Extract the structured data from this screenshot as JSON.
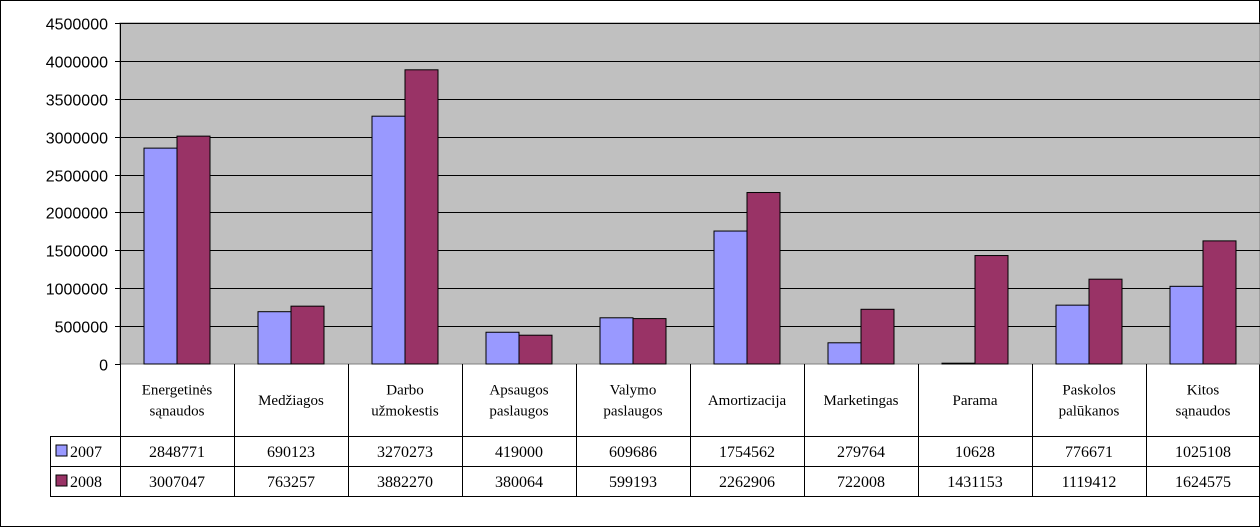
{
  "chart_data": {
    "type": "bar",
    "categories": [
      [
        "Energetinės",
        "sąnaudos"
      ],
      [
        "Medžiagos"
      ],
      [
        "Darbo",
        "užmokestis"
      ],
      [
        "Apsaugos",
        "paslaugos"
      ],
      [
        "Valymo",
        "paslaugos"
      ],
      [
        "Amortizacija"
      ],
      [
        "Marketingas"
      ],
      [
        "Parama"
      ],
      [
        "Paskolos",
        "palūkanos"
      ],
      [
        "Kitos",
        "sąnaudos"
      ]
    ],
    "series": [
      {
        "name": "2007",
        "color": "#9999ff",
        "values": [
          2848771,
          690123,
          3270273,
          419000,
          609686,
          1754562,
          279764,
          10628,
          776671,
          1025108
        ],
        "labels": [
          "2848771",
          "690123",
          "3270273",
          "419000",
          "609686",
          "1754562",
          "279764",
          "10628",
          "776671",
          "1025108"
        ]
      },
      {
        "name": "2008",
        "color": "#993366",
        "values": [
          3007047,
          763257,
          3882270,
          380064,
          599193,
          2262906,
          722008,
          1431153,
          1119412,
          1624575
        ],
        "labels": [
          "3007047",
          "763257",
          "3882270",
          "380064",
          "599193",
          "2262906",
          "722008",
          "1431153",
          "1119412",
          "1624575"
        ]
      }
    ],
    "ylim": [
      0,
      4500000
    ],
    "yticks": [
      "0",
      "500000",
      "1000000",
      "1500000",
      "2000000",
      "2500000",
      "3000000",
      "3500000",
      "4000000",
      "4500000"
    ],
    "ytick_values": [
      0,
      500000,
      1000000,
      1500000,
      2000000,
      2500000,
      3000000,
      3500000,
      4000000,
      4500000
    ],
    "plot_background": "#c0c0c0",
    "grid": true,
    "legend": "data-table"
  }
}
